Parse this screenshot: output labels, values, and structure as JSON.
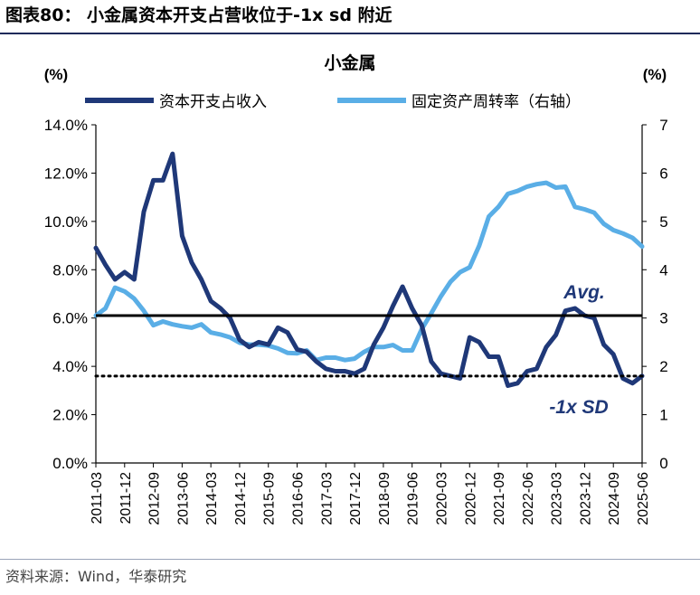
{
  "figure_title": "图表80： 小金属资本开支占营收位于-1x sd 附近",
  "source_note": "资料来源：Wind，华泰研究",
  "colors": {
    "left_series": "#1f3878",
    "right_series": "#5aaee6",
    "rule": "#1f2a5a"
  },
  "chart_data": {
    "type": "line",
    "title": "小金属",
    "left_unit": "(%)",
    "right_unit": "(%)",
    "left_ylim": [
      0,
      14
    ],
    "right_ylim": [
      0,
      7
    ],
    "left_ticks": [
      "0.0%",
      "2.0%",
      "4.0%",
      "6.0%",
      "8.0%",
      "10.0%",
      "12.0%",
      "14.0%"
    ],
    "right_ticks": [
      "0",
      "1",
      "2",
      "3",
      "4",
      "5",
      "6",
      "7"
    ],
    "x_tick_labels": [
      "2011-03",
      "2011-12",
      "2012-09",
      "2013-06",
      "2014-03",
      "2014-12",
      "2015-09",
      "2016-06",
      "2017-03",
      "2017-12",
      "2018-09",
      "2019-06",
      "2020-03",
      "2020-12",
      "2021-09",
      "2022-06",
      "2023-03",
      "2023-12",
      "2024-09",
      "2025-06"
    ],
    "quarter_count": 58,
    "avg_value": 6.1,
    "avg_label": "Avg.",
    "minus_sd_value": 3.6,
    "minus_sd_label": "-1x SD",
    "series": [
      {
        "name": "资本开支占收入",
        "axis": "left",
        "values": [
          8.9,
          8.2,
          7.6,
          7.9,
          7.6,
          10.4,
          11.7,
          11.7,
          12.8,
          9.4,
          8.3,
          7.6,
          6.7,
          6.4,
          6.0,
          5.1,
          4.8,
          5.0,
          4.9,
          5.6,
          5.4,
          4.7,
          4.6,
          4.2,
          3.9,
          3.8,
          3.8,
          3.7,
          3.9,
          4.9,
          5.6,
          6.5,
          7.3,
          6.4,
          5.7,
          4.2,
          3.7,
          3.6,
          3.5,
          5.2,
          5.0,
          4.4,
          4.4,
          3.2,
          3.3,
          3.8,
          3.9,
          4.8,
          5.3,
          6.3,
          6.4,
          6.1,
          6.0,
          4.9,
          4.5,
          3.5,
          3.3,
          3.6
        ]
      },
      {
        "name": "固定资产周转率（右轴）",
        "axis": "right",
        "values": [
          3.05,
          3.2,
          3.63,
          3.55,
          3.4,
          3.15,
          2.85,
          2.93,
          2.87,
          2.83,
          2.8,
          2.87,
          2.7,
          2.66,
          2.6,
          2.49,
          2.45,
          2.45,
          2.43,
          2.37,
          2.28,
          2.27,
          2.33,
          2.13,
          2.18,
          2.18,
          2.13,
          2.16,
          2.3,
          2.4,
          2.4,
          2.44,
          2.33,
          2.33,
          2.77,
          3.1,
          3.45,
          3.75,
          3.95,
          4.05,
          4.5,
          5.1,
          5.3,
          5.57,
          5.63,
          5.72,
          5.77,
          5.8,
          5.7,
          5.72,
          5.3,
          5.25,
          5.18,
          4.95,
          4.82,
          4.75,
          4.66,
          4.48
        ]
      }
    ]
  }
}
